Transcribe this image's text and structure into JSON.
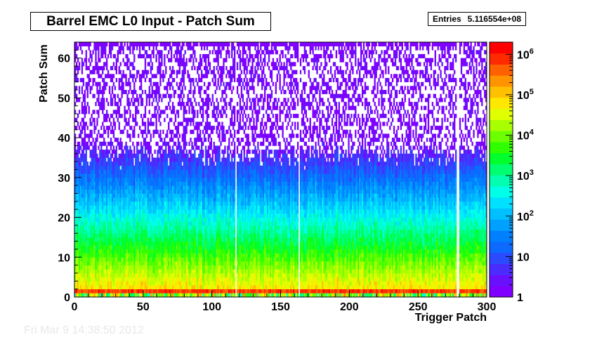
{
  "title": "Barrel EMC L0 Input - Patch Sum",
  "stats": {
    "label": "Entries",
    "value": "5.116554e+08"
  },
  "footer_text": "Fri Mar  9 14:38:50 2012",
  "chart_data": {
    "type": "heatmap",
    "title": "Barrel EMC L0 Input - Patch Sum",
    "xlabel": "Trigger Patch",
    "ylabel": "Patch Sum",
    "xlim": [
      0,
      300
    ],
    "ylim": [
      0,
      64
    ],
    "x_ticks": [
      0,
      50,
      100,
      150,
      200,
      250,
      300
    ],
    "y_ticks": [
      0,
      10,
      20,
      30,
      40,
      50,
      60
    ],
    "z_scale": "log",
    "z_range": [
      1,
      2000000
    ],
    "z_ticks": [
      {
        "value": 1,
        "label": "1"
      },
      {
        "value": 10,
        "label": "10"
      },
      {
        "value": 100,
        "label": "10",
        "exp": "2"
      },
      {
        "value": 1000,
        "label": "10",
        "exp": "3"
      },
      {
        "value": 10000,
        "label": "10",
        "exp": "4"
      },
      {
        "value": 100000,
        "label": "10",
        "exp": "5"
      },
      {
        "value": 1000000,
        "label": "10",
        "exp": "6"
      }
    ],
    "palette": [
      "#7f00ff",
      "#6a10ff",
      "#4b2cff",
      "#2a4bff",
      "#0c6aff",
      "#0080ff",
      "#00a0ff",
      "#00c0ff",
      "#00e0ff",
      "#00ffe8",
      "#00ffb0",
      "#00ff70",
      "#00ff2c",
      "#30ff00",
      "#6cff00",
      "#a8ff00",
      "#e0ff00",
      "#ffe800",
      "#ffc000",
      "#ff9400",
      "#ff6000",
      "#ff2a00",
      "#ff0000"
    ],
    "empty_patches": [
      117,
      163,
      278,
      279
    ],
    "hot_row_patch_sum": 1
  }
}
